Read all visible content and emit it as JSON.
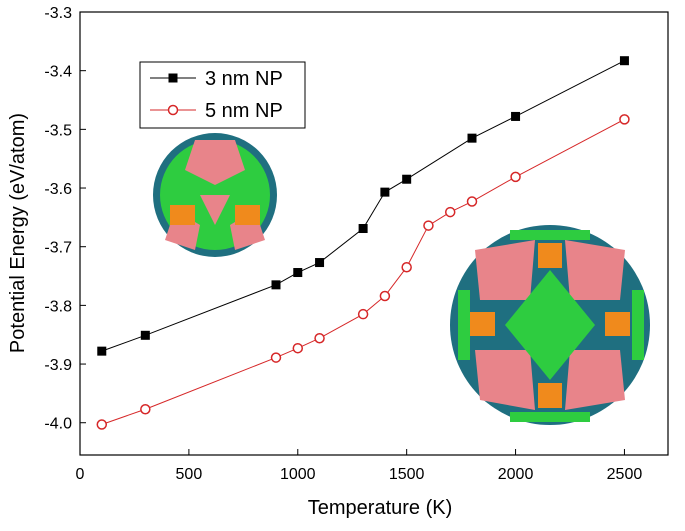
{
  "chart_data": {
    "type": "line",
    "xlabel": "Temperature (K)",
    "ylabel": "Potential Energy (eV/atom)",
    "series": [
      {
        "name": "3 nm NP",
        "color": "#000000",
        "marker": "square",
        "x": [
          100,
          300,
          900,
          1000,
          1100,
          1300,
          1400,
          1500,
          1800,
          2000,
          2500
        ],
        "values": [
          -3.878,
          -3.851,
          -3.765,
          -3.744,
          -3.727,
          -3.669,
          -3.607,
          -3.585,
          -3.515,
          -3.478,
          -3.383
        ]
      },
      {
        "name": "5 nm NP",
        "color": "#d62728",
        "marker": "open-circle",
        "x": [
          100,
          300,
          900,
          1000,
          1100,
          1300,
          1400,
          1500,
          1600,
          1700,
          1800,
          2000,
          2500
        ],
        "values": [
          -4.003,
          -3.977,
          -3.889,
          -3.873,
          -3.856,
          -3.815,
          -3.784,
          -3.735,
          -3.664,
          -3.641,
          -3.623,
          -3.581,
          -3.483
        ]
      }
    ],
    "xlim": [
      0,
      2700
    ],
    "xticks": [
      0,
      500,
      1000,
      1500,
      2000,
      2500
    ],
    "ylim": [
      -4.055,
      -3.3
    ],
    "yticks": [
      {
        "value": -4,
        "label": "-4.0"
      },
      -3.9,
      -3.8,
      -3.7,
      -3.6,
      -3.5,
      -3.4,
      -3.3
    ],
    "legend": "upper left"
  }
}
